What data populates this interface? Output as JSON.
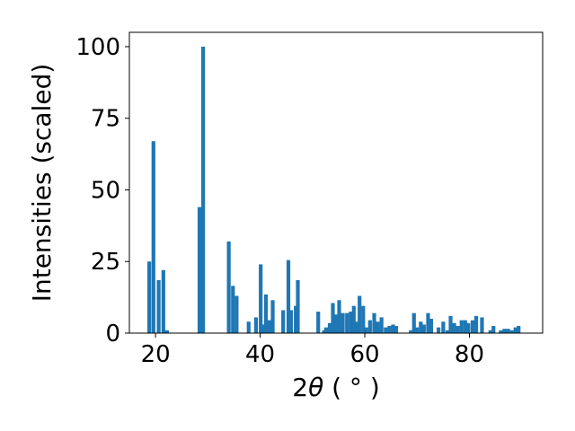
{
  "chart_data": {
    "type": "bar",
    "xlabel_prefix": "2",
    "xlabel_symbol": "θ",
    "xlabel_unit": " ( ° )",
    "ylabel": "Intensities (scaled)",
    "xlim": [
      15,
      94
    ],
    "ylim": [
      0,
      105
    ],
    "xticks": [
      20,
      40,
      60,
      80
    ],
    "yticks": [
      0,
      25,
      50,
      75,
      100
    ],
    "bar_color": "#1f77b4",
    "bar_width": 0.72,
    "grid": false,
    "x": [
      18.8,
      19.6,
      20.6,
      21.5,
      22.2,
      28.4,
      29.1,
      34.0,
      34.8,
      35.5,
      37.8,
      39.2,
      40.1,
      40.7,
      41.1,
      41.8,
      42.4,
      44.4,
      45.4,
      45.9,
      46.8,
      47.2,
      51.1,
      52.2,
      52.6,
      53.3,
      53.9,
      54.5,
      55.1,
      55.8,
      56.6,
      57.3,
      57.9,
      58.4,
      59.0,
      59.7,
      60.3,
      61.0,
      61.8,
      62.5,
      63.2,
      64.0,
      64.7,
      65.4,
      66.0,
      68.8,
      69.4,
      70.0,
      70.7,
      71.3,
      72.1,
      72.7,
      74.1,
      75.0,
      75.8,
      76.4,
      77.1,
      77.8,
      78.5,
      79.2,
      79.8,
      80.6,
      81.3,
      82.4,
      84.0,
      84.6,
      86.0,
      86.7,
      87.4,
      88.1,
      88.8,
      89.4
    ],
    "values": [
      25.0,
      67.0,
      18.5,
      22.0,
      1.0,
      44.0,
      100.0,
      32.0,
      16.5,
      13.0,
      4.0,
      5.5,
      24.0,
      3.0,
      13.5,
      4.5,
      11.5,
      8.0,
      25.5,
      8.0,
      9.5,
      18.5,
      7.5,
      1.0,
      2.0,
      3.5,
      10.5,
      6.5,
      11.5,
      7.0,
      7.0,
      7.5,
      9.5,
      4.0,
      13.0,
      9.5,
      2.0,
      4.5,
      7.0,
      4.0,
      5.5,
      2.0,
      2.5,
      3.0,
      2.5,
      1.0,
      7.0,
      2.0,
      4.0,
      3.0,
      7.0,
      5.0,
      2.0,
      4.0,
      1.0,
      6.0,
      3.5,
      2.5,
      4.5,
      4.5,
      3.5,
      4.5,
      6.0,
      5.5,
      1.0,
      2.5,
      1.0,
      1.5,
      1.5,
      1.0,
      2.0,
      2.5
    ]
  }
}
